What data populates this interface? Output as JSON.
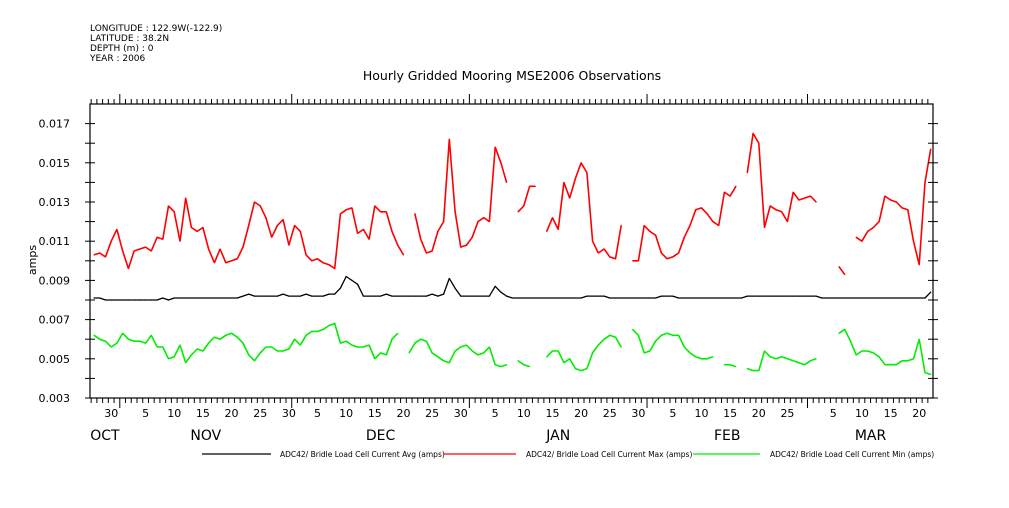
{
  "header": {
    "longitude": "LONGITUDE : 122.9W(-122.9)",
    "latitude": "LATITUDE : 38.2N",
    "depth": "DEPTH (m) : 0",
    "year": "YEAR : 2006"
  },
  "chart_data": {
    "type": "line",
    "title": "Hourly Gridded Mooring MSE2006 Observations",
    "xlabel": "",
    "ylabel": "amps",
    "x_unit": "days from Nov 1",
    "xlim": [
      -5.2,
      141.9
    ],
    "ylim": [
      0.003,
      0.018
    ],
    "grid": false,
    "x_start_day": -5,
    "y_ticks": [
      0.003,
      0.004,
      0.005,
      0.006,
      0.007,
      0.008,
      0.009,
      0.01,
      0.011,
      0.012,
      0.013,
      0.014,
      0.015,
      0.016,
      0.017
    ],
    "y_tick_labels": [
      {
        "value": 0.003,
        "label": "0.003"
      },
      {
        "value": 0.005,
        "label": "0.005"
      },
      {
        "value": 0.007,
        "label": "0.007"
      },
      {
        "value": 0.009,
        "label": "0.009"
      },
      {
        "value": 0.011,
        "label": "0.011"
      },
      {
        "value": 0.013,
        "label": "0.013"
      },
      {
        "value": 0.015,
        "label": "0.015"
      },
      {
        "value": 0.017,
        "label": "0.017"
      }
    ],
    "month_starts": [
      0,
      30,
      61,
      92,
      120
    ],
    "day_labels": [
      {
        "day": -2,
        "label": "30"
      },
      {
        "day": 4,
        "label": "5"
      },
      {
        "day": 9,
        "label": "10"
      },
      {
        "day": 14,
        "label": "15"
      },
      {
        "day": 19,
        "label": "20"
      },
      {
        "day": 24,
        "label": "25"
      },
      {
        "day": 29,
        "label": "30"
      },
      {
        "day": 34,
        "label": "5"
      },
      {
        "day": 39,
        "label": "10"
      },
      {
        "day": 44,
        "label": "15"
      },
      {
        "day": 49,
        "label": "20"
      },
      {
        "day": 54,
        "label": "25"
      },
      {
        "day": 59,
        "label": "30"
      },
      {
        "day": 65,
        "label": "5"
      },
      {
        "day": 70,
        "label": "10"
      },
      {
        "day": 75,
        "label": "15"
      },
      {
        "day": 80,
        "label": "20"
      },
      {
        "day": 85,
        "label": "25"
      },
      {
        "day": 90,
        "label": "30"
      },
      {
        "day": 96,
        "label": "5"
      },
      {
        "day": 101,
        "label": "10"
      },
      {
        "day": 106,
        "label": "15"
      },
      {
        "day": 111,
        "label": "20"
      },
      {
        "day": 116,
        "label": "25"
      },
      {
        "day": 124,
        "label": "5"
      },
      {
        "day": 129,
        "label": "10"
      },
      {
        "day": 134,
        "label": "15"
      },
      {
        "day": 139,
        "label": "20"
      }
    ],
    "month_labels": [
      {
        "day": -2.6,
        "label": "OCT"
      },
      {
        "day": 15,
        "label": "NOV"
      },
      {
        "day": 45.5,
        "label": "DEC"
      },
      {
        "day": 76.5,
        "label": "JAN"
      },
      {
        "day": 106,
        "label": "FEB"
      },
      {
        "day": 131,
        "label": "MAR"
      }
    ],
    "series": [
      {
        "name": "ADC42/ Bridle Load Cell Current Avg (amps)",
        "color": "#000000",
        "values": [
          0.0081,
          0.0081,
          0.008,
          0.008,
          0.008,
          0.008,
          0.008,
          0.008,
          0.008,
          0.008,
          0.008,
          0.008,
          0.0081,
          0.008,
          0.0081,
          0.0081,
          0.0081,
          0.0081,
          0.0081,
          0.0081,
          0.0081,
          0.0081,
          0.0081,
          0.0081,
          0.0081,
          0.0081,
          0.0082,
          0.0083,
          0.0082,
          0.0082,
          0.0082,
          0.0082,
          0.0082,
          0.0083,
          0.0082,
          0.0082,
          0.0082,
          0.0083,
          0.0082,
          0.0082,
          0.0082,
          0.0083,
          0.0083,
          0.0086,
          0.0092,
          0.009,
          0.0088,
          0.0082,
          0.0082,
          0.0082,
          0.0082,
          0.0083,
          0.0082,
          0.0082,
          0.0082,
          0.0082,
          0.0082,
          0.0082,
          0.0082,
          0.0083,
          0.0082,
          0.0083,
          0.0091,
          0.0086,
          0.0082,
          0.0082,
          0.0082,
          0.0082,
          0.0082,
          0.0082,
          0.0087,
          0.0084,
          0.0082,
          0.0081,
          0.0081,
          0.0081,
          0.0081,
          0.0081,
          0.0081,
          0.0081,
          0.0081,
          0.0081,
          0.0081,
          0.0081,
          0.0081,
          0.0081,
          0.0082,
          0.0082,
          0.0082,
          0.0082,
          0.0081,
          0.0081,
          0.0081,
          0.0081,
          0.0081,
          0.0081,
          0.0081,
          0.0081,
          0.0081,
          0.0082,
          0.0082,
          0.0082,
          0.0081,
          0.0081,
          0.0081,
          0.0081,
          0.0081,
          0.0081,
          0.0081,
          0.0081,
          0.0081,
          0.0081,
          0.0081,
          0.0081,
          0.0082,
          0.0082,
          0.0082,
          0.0082,
          0.0082,
          0.0082,
          0.0082,
          0.0082,
          0.0082,
          0.0082,
          0.0082,
          0.0082,
          0.0082,
          0.0081,
          0.0081,
          0.0081,
          0.0081,
          0.0081,
          0.0081,
          0.0081,
          0.0081,
          0.0081,
          0.0081,
          0.0081,
          0.0081,
          0.0081,
          0.0081,
          0.0081,
          0.0081,
          0.0081,
          0.0081,
          0.0081,
          0.0084
        ]
      },
      {
        "name": "ADC42/ Bridle Load Cell Current Max (amps)",
        "color": "#ff0000",
        "values": [
          0.0103,
          0.0104,
          0.0102,
          0.011,
          0.0116,
          0.0105,
          0.0096,
          0.0105,
          0.0106,
          0.0107,
          0.0105,
          0.0112,
          0.0111,
          0.0128,
          0.0125,
          0.011,
          0.0132,
          0.0117,
          0.0115,
          0.0117,
          0.0106,
          0.0099,
          0.0106,
          0.0099,
          0.01,
          0.0101,
          0.0107,
          0.0118,
          0.013,
          0.0128,
          0.0122,
          0.0112,
          0.0118,
          0.0121,
          0.0108,
          0.0118,
          0.0115,
          0.0103,
          0.01,
          0.0101,
          0.0099,
          0.0098,
          0.0096,
          0.0124,
          0.0126,
          0.0127,
          0.0114,
          0.0116,
          0.0111,
          0.0128,
          0.0125,
          0.0125,
          0.0115,
          0.0108,
          0.0103,
          null,
          0.0124,
          0.0111,
          0.0104,
          0.0105,
          0.0115,
          0.012,
          0.0162,
          0.0125,
          0.0107,
          0.0108,
          0.0112,
          0.012,
          0.0122,
          0.012,
          0.0158,
          0.015,
          0.014,
          null,
          0.0125,
          0.0128,
          0.0138,
          0.0138,
          null,
          0.0115,
          0.0122,
          0.0116,
          0.014,
          0.0132,
          0.0142,
          0.015,
          0.0145,
          0.011,
          0.0104,
          0.0106,
          0.0102,
          0.0101,
          0.0118,
          null,
          0.01,
          0.01,
          0.0118,
          0.0115,
          0.0113,
          0.0104,
          0.0101,
          0.0102,
          0.0104,
          0.0112,
          0.0118,
          0.0126,
          0.0127,
          0.0124,
          0.012,
          0.0118,
          0.0135,
          0.0133,
          0.0138,
          null,
          0.0145,
          0.0165,
          0.016,
          0.0117,
          0.0128,
          0.0126,
          0.0125,
          0.012,
          0.0135,
          0.0131,
          0.0132,
          0.0133,
          0.013,
          null,
          null,
          null,
          0.0097,
          0.0093,
          null,
          0.0112,
          0.011,
          0.0115,
          0.0117,
          0.012,
          0.0133,
          0.0131,
          0.013,
          0.0127,
          0.0126,
          0.011,
          0.0098,
          0.014,
          0.0157
        ]
      },
      {
        "name": "ADC42/ Bridle Load Cell Current Min (amps)",
        "color": "#00ee00",
        "values": [
          0.0062,
          0.006,
          0.0059,
          0.0056,
          0.0058,
          0.0063,
          0.006,
          0.0059,
          0.0059,
          0.0058,
          0.0062,
          0.0056,
          0.0056,
          0.005,
          0.0051,
          0.0057,
          0.0048,
          0.0052,
          0.0055,
          0.0054,
          0.0058,
          0.0061,
          0.006,
          0.0062,
          0.0063,
          0.0061,
          0.0058,
          0.0052,
          0.0049,
          0.0053,
          0.0056,
          0.0056,
          0.0054,
          0.0054,
          0.0055,
          0.006,
          0.0057,
          0.0062,
          0.0064,
          0.0064,
          0.0065,
          0.0067,
          0.0068,
          0.0058,
          0.0059,
          0.0057,
          0.0056,
          0.0056,
          0.0057,
          0.005,
          0.0053,
          0.0052,
          0.006,
          0.0063,
          null,
          0.0053,
          0.0058,
          0.006,
          0.0059,
          0.0053,
          0.0051,
          0.0049,
          0.0048,
          0.0054,
          0.0056,
          0.0057,
          0.0054,
          0.0052,
          0.0053,
          0.0056,
          0.0047,
          0.0046,
          0.0047,
          null,
          0.0049,
          0.0047,
          0.0046,
          null,
          null,
          0.0051,
          0.0054,
          0.0054,
          0.0048,
          0.005,
          0.0045,
          0.0044,
          0.0045,
          0.0053,
          0.0057,
          0.006,
          0.0062,
          0.0061,
          0.0056,
          null,
          0.0065,
          0.0062,
          0.0053,
          0.0054,
          0.0059,
          0.0062,
          0.0063,
          0.0062,
          0.0062,
          0.0056,
          0.0053,
          0.0051,
          0.005,
          0.005,
          0.0051,
          null,
          0.0047,
          0.0047,
          0.0046,
          null,
          0.0045,
          0.0044,
          0.0044,
          0.0054,
          0.0051,
          0.005,
          0.0051,
          0.005,
          0.0049,
          0.0048,
          0.0047,
          0.0049,
          0.005,
          null,
          null,
          null,
          0.0063,
          0.0065,
          0.0059,
          0.0052,
          0.0054,
          0.0054,
          0.0053,
          0.0051,
          0.0047,
          0.0047,
          0.0047,
          0.0049,
          0.0049,
          0.005,
          0.006,
          0.0043,
          0.0042
        ]
      }
    ],
    "legend_position": "bottom"
  }
}
